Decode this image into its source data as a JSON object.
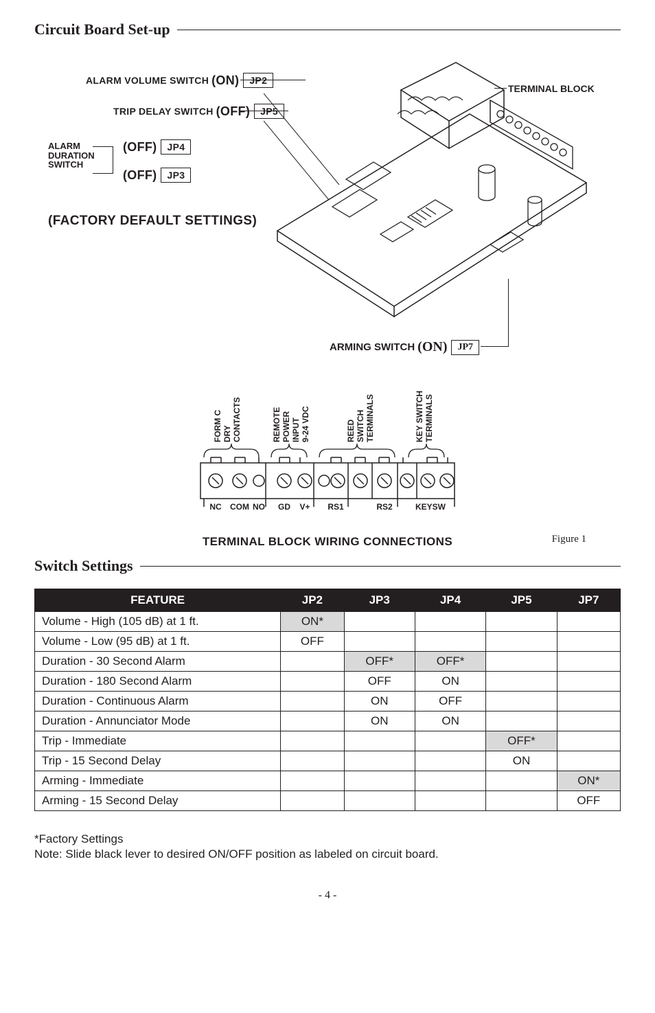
{
  "headings": {
    "circuit_board": "Circuit Board Set-up",
    "switch_settings": "Switch Settings"
  },
  "diagram": {
    "alarm_volume_text": "ALARM VOLUME SWITCH",
    "alarm_volume_state": "(ON)",
    "jp2": "JP2",
    "trip_delay_text": "TRIP DELAY SWITCH",
    "trip_delay_state": "(OFF)",
    "jp5": "JP5",
    "alarm_stack_l1": "ALARM",
    "alarm_stack_l2": "DURATION",
    "alarm_stack_l3": "SWITCH",
    "jp4_state": "(OFF)",
    "jp4": "JP4",
    "jp3_state": "(OFF)",
    "jp3": "JP3",
    "factory": "(FACTORY DEFAULT SETTINGS)",
    "terminal_block_label": "TERMINAL BLOCK",
    "arming_text": "ARMING SWITCH",
    "arming_state": "(ON)",
    "jp7": "JP7"
  },
  "terminal_block": {
    "groups": {
      "formc_l1": "FORM C",
      "formc_l2": "DRY",
      "formc_l3": "CONTACTS",
      "remote_l1": "REMOTE",
      "remote_l2": "POWER",
      "remote_l3": "INPUT",
      "remote_l4": "9-24 VDC",
      "reed_l1": "REED",
      "reed_l2": "SWITCH",
      "reed_l3": "TERMINALS",
      "key_l1": "KEY SWITCH",
      "key_l2": "TERMINALS"
    },
    "pins": {
      "nc": "NC",
      "com": "COM",
      "no": "NO",
      "gd": "GD",
      "vplus": "V+",
      "rs1": "RS1",
      "rs2": "RS2",
      "keysw": "KEYSW"
    },
    "caption": "TERMINAL BLOCK WIRING CONNECTIONS",
    "figure": "Figure 1"
  },
  "table": {
    "headers": {
      "feature": "FEATURE",
      "jp2": "JP2",
      "jp3": "JP3",
      "jp4": "JP4",
      "jp5": "JP5",
      "jp7": "JP7"
    },
    "rows": [
      {
        "feature": "Volume - High (105 dB) at 1 ft.",
        "jp2": "ON*",
        "jp3": "",
        "jp4": "",
        "jp5": "",
        "jp7": "",
        "shade": "jp2"
      },
      {
        "feature": "Volume - Low (95 dB) at 1 ft.",
        "jp2": "OFF",
        "jp3": "",
        "jp4": "",
        "jp5": "",
        "jp7": ""
      },
      {
        "feature": "Duration - 30 Second Alarm",
        "jp2": "",
        "jp3": "OFF*",
        "jp4": "OFF*",
        "jp5": "",
        "jp7": "",
        "shade": "jp3jp4"
      },
      {
        "feature": "Duration - 180 Second Alarm",
        "jp2": "",
        "jp3": "OFF",
        "jp4": "ON",
        "jp5": "",
        "jp7": ""
      },
      {
        "feature": "Duration - Continuous Alarm",
        "jp2": "",
        "jp3": "ON",
        "jp4": "OFF",
        "jp5": "",
        "jp7": ""
      },
      {
        "feature": "Duration - Annunciator Mode",
        "jp2": "",
        "jp3": "ON",
        "jp4": "ON",
        "jp5": "",
        "jp7": ""
      },
      {
        "feature": "Trip - Immediate",
        "jp2": "",
        "jp3": "",
        "jp4": "",
        "jp5": "OFF*",
        "jp7": "",
        "shade": "jp5"
      },
      {
        "feature": "Trip - 15 Second Delay",
        "jp2": "",
        "jp3": "",
        "jp4": "",
        "jp5": "ON",
        "jp7": ""
      },
      {
        "feature": "Arming - Immediate",
        "jp2": "",
        "jp3": "",
        "jp4": "",
        "jp5": "",
        "jp7": "ON*",
        "shade": "jp7"
      },
      {
        "feature": "Arming - 15 Second Delay",
        "jp2": "",
        "jp3": "",
        "jp4": "",
        "jp5": "",
        "jp7": "OFF"
      }
    ]
  },
  "footnote": {
    "l1": "*Factory Settings",
    "l2": "Note: Slide black lever to desired ON/OFF position as labeled on circuit board."
  },
  "page": "- 4 -"
}
